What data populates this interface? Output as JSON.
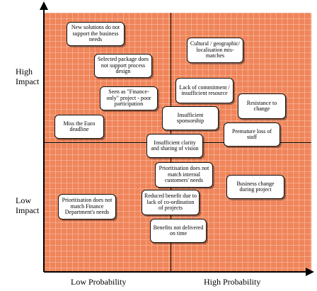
{
  "y_axis": {
    "high_line1": "High",
    "high_line2": "Impact",
    "low_line1": "Low",
    "low_line2": "Impact"
  },
  "x_axis": {
    "low": "Low Probability",
    "high": "High Probability"
  },
  "risks": {
    "new_solutions": "New solutions do not support the business needs",
    "selected_package": "Selected package does not support process design",
    "finance_only": "Seen as \"Finance-only\" project - poor participation",
    "euro_deadline": "Miss the Euro deadline",
    "cultural": "Cultural / geographic/ localisation mis-matches",
    "commitment": "Lack of commitment / insufficient resource",
    "resistance": "Resistance to change",
    "sponsorship": "Insufficient sponsorship",
    "staff_loss": "Premature loss of staff",
    "vision": "Insufficient clarity and sharing of vision",
    "internal_customers": "Prioritisation does not match internal customers' needs",
    "business_change": "Business change during project",
    "finance_needs": "Prioritisation does not match Finance Department's needs",
    "coordination": "Reduced benefit due to lack of co-ordination of projects",
    "ontime": "Benefits not delivered on time"
  }
}
